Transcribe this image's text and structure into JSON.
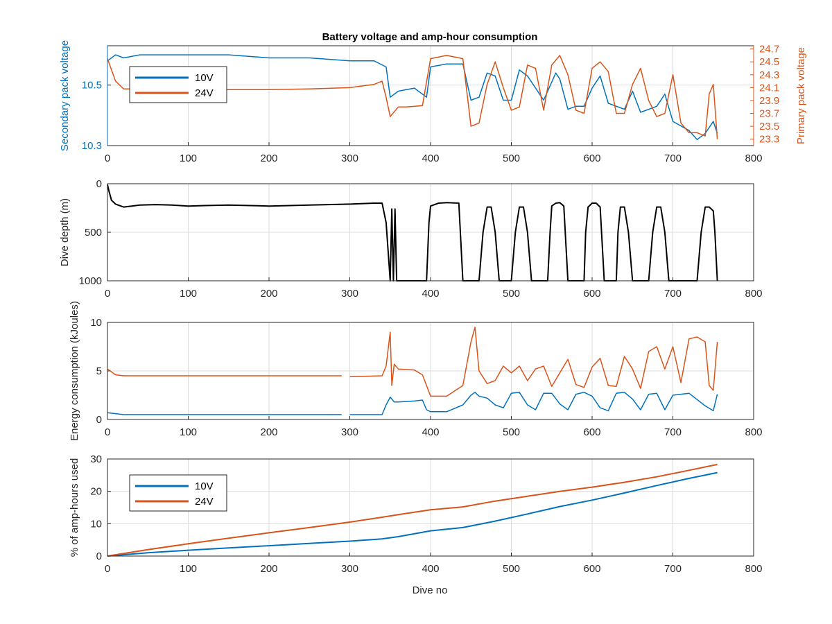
{
  "colors": {
    "blue": "#0072BD",
    "orange": "#D95319",
    "black": "#000000",
    "grid": "#dcdcdc",
    "axis": "#262626"
  },
  "chart_data": [
    {
      "type": "line",
      "title": "Battery voltage and amp-hour consumption",
      "xlabel": "",
      "ylabel_left": "Secondary pack voltage",
      "ylabel_right": "Primary pack voltage",
      "xlim": [
        0,
        800
      ],
      "ylim_left": [
        10.3,
        10.63
      ],
      "ylim_right": [
        23.2,
        24.75
      ],
      "xticks": [
        "0",
        "100",
        "200",
        "300",
        "400",
        "500",
        "600",
        "700",
        "800"
      ],
      "yticks_left": [
        "10.3",
        "10.5"
      ],
      "yticks_right": [
        "23.3",
        "23.5",
        "23.7",
        "23.9",
        "24.1",
        "24.3",
        "24.5",
        "24.7"
      ],
      "grid": true,
      "legend": {
        "placement": "top-left",
        "entries": [
          "10V",
          "24V"
        ]
      },
      "series": [
        {
          "name": "10V",
          "axis": "left",
          "x": [
            0,
            10,
            20,
            40,
            60,
            80,
            100,
            150,
            200,
            250,
            300,
            330,
            345,
            350,
            360,
            380,
            395,
            400,
            420,
            440,
            450,
            460,
            470,
            480,
            490,
            500,
            510,
            520,
            540,
            555,
            560,
            570,
            580,
            590,
            600,
            610,
            620,
            640,
            650,
            660,
            680,
            690,
            700,
            720,
            730,
            740,
            750,
            755
          ],
          "y": [
            10.58,
            10.6,
            10.59,
            10.6,
            10.6,
            10.6,
            10.6,
            10.6,
            10.59,
            10.59,
            10.58,
            10.58,
            10.56,
            10.46,
            10.48,
            10.49,
            10.46,
            10.56,
            10.57,
            10.57,
            10.45,
            10.46,
            10.54,
            10.53,
            10.45,
            10.45,
            10.55,
            10.53,
            10.45,
            10.54,
            10.52,
            10.42,
            10.43,
            10.43,
            10.49,
            10.53,
            10.44,
            10.42,
            10.48,
            10.41,
            10.43,
            10.47,
            10.38,
            10.35,
            10.32,
            10.34,
            10.38,
            10.34
          ]
        },
        {
          "name": "24V",
          "axis": "right",
          "x": [
            0,
            10,
            20,
            50,
            100,
            150,
            200,
            250,
            300,
            330,
            340,
            345,
            350,
            360,
            370,
            390,
            400,
            420,
            440,
            450,
            460,
            470,
            480,
            490,
            500,
            510,
            520,
            530,
            540,
            550,
            560,
            570,
            580,
            590,
            600,
            610,
            620,
            630,
            640,
            650,
            660,
            670,
            680,
            690,
            700,
            710,
            720,
            730,
            740,
            745,
            750,
            755
          ],
          "y": [
            24.55,
            24.2,
            24.08,
            24.08,
            24.07,
            24.07,
            24.07,
            24.08,
            24.1,
            24.15,
            24.2,
            23.95,
            23.65,
            23.8,
            23.8,
            23.82,
            24.55,
            24.6,
            24.55,
            23.5,
            23.55,
            24.15,
            24.5,
            24.1,
            23.75,
            23.8,
            24.45,
            24.4,
            23.75,
            24.45,
            24.6,
            24.3,
            23.75,
            23.7,
            24.4,
            24.5,
            24.35,
            23.7,
            23.7,
            24.15,
            24.4,
            23.9,
            23.65,
            23.7,
            24.3,
            23.55,
            23.4,
            23.4,
            23.35,
            24.0,
            24.15,
            23.3
          ]
        }
      ]
    },
    {
      "type": "line",
      "title": "",
      "xlabel": "",
      "ylabel": "Dive depth (m)",
      "xlim": [
        0,
        800
      ],
      "ylim": [
        0,
        1000
      ],
      "y_reversed": true,
      "xticks": [
        "0",
        "100",
        "200",
        "300",
        "400",
        "500",
        "600",
        "700",
        "800"
      ],
      "yticks": [
        "0",
        "500",
        "1000"
      ],
      "yticks_display": [
        "0",
        "500",
        "1000"
      ],
      "grid": true,
      "series": [
        {
          "name": "",
          "x": [
            0,
            2,
            5,
            10,
            20,
            30,
            40,
            60,
            80,
            100,
            120,
            150,
            200,
            250,
            300,
            330,
            340,
            345,
            350,
            352,
            354,
            356,
            358,
            360,
            380,
            395,
            398,
            400,
            410,
            420,
            435,
            440,
            445,
            450,
            460,
            465,
            470,
            475,
            480,
            485,
            500,
            505,
            510,
            515,
            520,
            525,
            545,
            548,
            550,
            555,
            560,
            565,
            570,
            590,
            592,
            595,
            600,
            605,
            610,
            615,
            630,
            632,
            635,
            640,
            645,
            650,
            670,
            675,
            680,
            685,
            690,
            695,
            730,
            735,
            740,
            745,
            750,
            752,
            755
          ],
          "y": [
            10,
            80,
            170,
            210,
            240,
            230,
            220,
            215,
            220,
            230,
            225,
            220,
            230,
            220,
            210,
            200,
            200,
            400,
            1000,
            260,
            1000,
            260,
            1000,
            1000,
            1000,
            1000,
            400,
            230,
            200,
            195,
            200,
            1000,
            1000,
            1000,
            1000,
            500,
            240,
            240,
            500,
            1000,
            1000,
            500,
            240,
            240,
            500,
            1000,
            1000,
            500,
            230,
            200,
            195,
            230,
            1000,
            1000,
            500,
            240,
            200,
            200,
            240,
            1000,
            1000,
            500,
            240,
            240,
            500,
            1000,
            1000,
            500,
            240,
            240,
            500,
            1000,
            1000,
            500,
            240,
            240,
            280,
            500,
            1000
          ]
        }
      ]
    },
    {
      "type": "line",
      "title": "",
      "xlabel": "",
      "ylabel": "Energy consumption (kJoules)",
      "xlim": [
        0,
        800
      ],
      "ylim": [
        0,
        10
      ],
      "xticks": [
        "0",
        "100",
        "200",
        "300",
        "400",
        "500",
        "600",
        "700",
        "800"
      ],
      "yticks": [
        "0",
        "5",
        "10"
      ],
      "grid": true,
      "series": [
        {
          "name": "10V",
          "x": [
            0,
            10,
            20,
            50,
            100,
            150,
            200,
            250,
            290,
            295,
            300,
            340,
            345,
            350,
            355,
            360,
            380,
            390,
            395,
            400,
            420,
            440,
            450,
            455,
            460,
            470,
            480,
            490,
            500,
            510,
            520,
            530,
            540,
            550,
            560,
            570,
            580,
            590,
            600,
            610,
            620,
            630,
            640,
            650,
            660,
            670,
            680,
            690,
            700,
            720,
            740,
            750,
            755
          ],
          "y": [
            0.7,
            0.6,
            0.5,
            0.5,
            0.5,
            0.5,
            0.5,
            0.5,
            0.5,
            null,
            0.5,
            0.5,
            1.5,
            2.3,
            1.8,
            1.8,
            1.9,
            2.0,
            1.0,
            0.8,
            0.8,
            1.5,
            2.5,
            2.8,
            2.4,
            2.2,
            1.5,
            1.2,
            2.7,
            2.8,
            1.5,
            1.0,
            2.7,
            2.7,
            1.6,
            1.0,
            2.6,
            2.8,
            2.4,
            1.2,
            0.9,
            2.7,
            2.8,
            2.1,
            1.0,
            2.6,
            2.7,
            1.0,
            2.5,
            2.7,
            1.4,
            0.9,
            2.6
          ]
        },
        {
          "name": "24V",
          "x": [
            0,
            10,
            20,
            50,
            100,
            150,
            200,
            250,
            290,
            295,
            300,
            340,
            345,
            350,
            352,
            355,
            360,
            380,
            390,
            395,
            400,
            420,
            440,
            450,
            455,
            460,
            470,
            480,
            490,
            500,
            510,
            520,
            530,
            540,
            550,
            560,
            570,
            580,
            590,
            600,
            610,
            620,
            630,
            640,
            650,
            660,
            670,
            680,
            690,
            700,
            710,
            720,
            730,
            740,
            745,
            750,
            755
          ],
          "y": [
            5.2,
            4.6,
            4.5,
            4.5,
            4.5,
            4.5,
            4.5,
            4.5,
            4.5,
            null,
            4.4,
            4.5,
            5.5,
            9.0,
            3.5,
            5.7,
            5.2,
            5.1,
            4.6,
            3.5,
            2.4,
            2.4,
            3.5,
            8.0,
            9.5,
            5.0,
            3.7,
            4.0,
            5.5,
            4.8,
            5.5,
            4.0,
            5.2,
            5.5,
            3.4,
            4.8,
            6.2,
            3.6,
            3.3,
            5.4,
            6.3,
            3.5,
            3.4,
            6.5,
            5.2,
            3.2,
            7.0,
            7.5,
            5.2,
            7.5,
            3.8,
            8.3,
            8.5,
            8.0,
            3.5,
            3.0,
            8.0
          ]
        }
      ]
    },
    {
      "type": "line",
      "title": "",
      "xlabel": "Dive no",
      "ylabel": "% of amp-hours used",
      "xlim": [
        0,
        800
      ],
      "ylim": [
        0,
        30
      ],
      "xticks": [
        "0",
        "100",
        "200",
        "300",
        "400",
        "500",
        "600",
        "700",
        "800"
      ],
      "yticks": [
        "0",
        "10",
        "20",
        "30"
      ],
      "grid": true,
      "legend": {
        "placement": "top-left",
        "entries": [
          "10V",
          "24V"
        ]
      },
      "series": [
        {
          "name": "10V",
          "x": [
            0,
            50,
            100,
            150,
            200,
            250,
            300,
            340,
            360,
            400,
            440,
            480,
            520,
            560,
            600,
            640,
            680,
            720,
            755
          ],
          "y": [
            0,
            1.0,
            1.8,
            2.5,
            3.2,
            3.9,
            4.6,
            5.3,
            6.0,
            7.8,
            8.8,
            10.8,
            13.0,
            15.3,
            17.3,
            19.5,
            21.8,
            24.0,
            25.8
          ]
        },
        {
          "name": "24V",
          "x": [
            0,
            50,
            100,
            150,
            200,
            250,
            300,
            340,
            360,
            400,
            440,
            480,
            520,
            560,
            600,
            640,
            680,
            720,
            755
          ],
          "y": [
            0,
            2.0,
            3.8,
            5.5,
            7.2,
            8.8,
            10.5,
            12.0,
            12.8,
            14.3,
            15.2,
            17.0,
            18.5,
            20.0,
            21.3,
            22.8,
            24.5,
            26.5,
            28.3
          ]
        }
      ]
    }
  ]
}
